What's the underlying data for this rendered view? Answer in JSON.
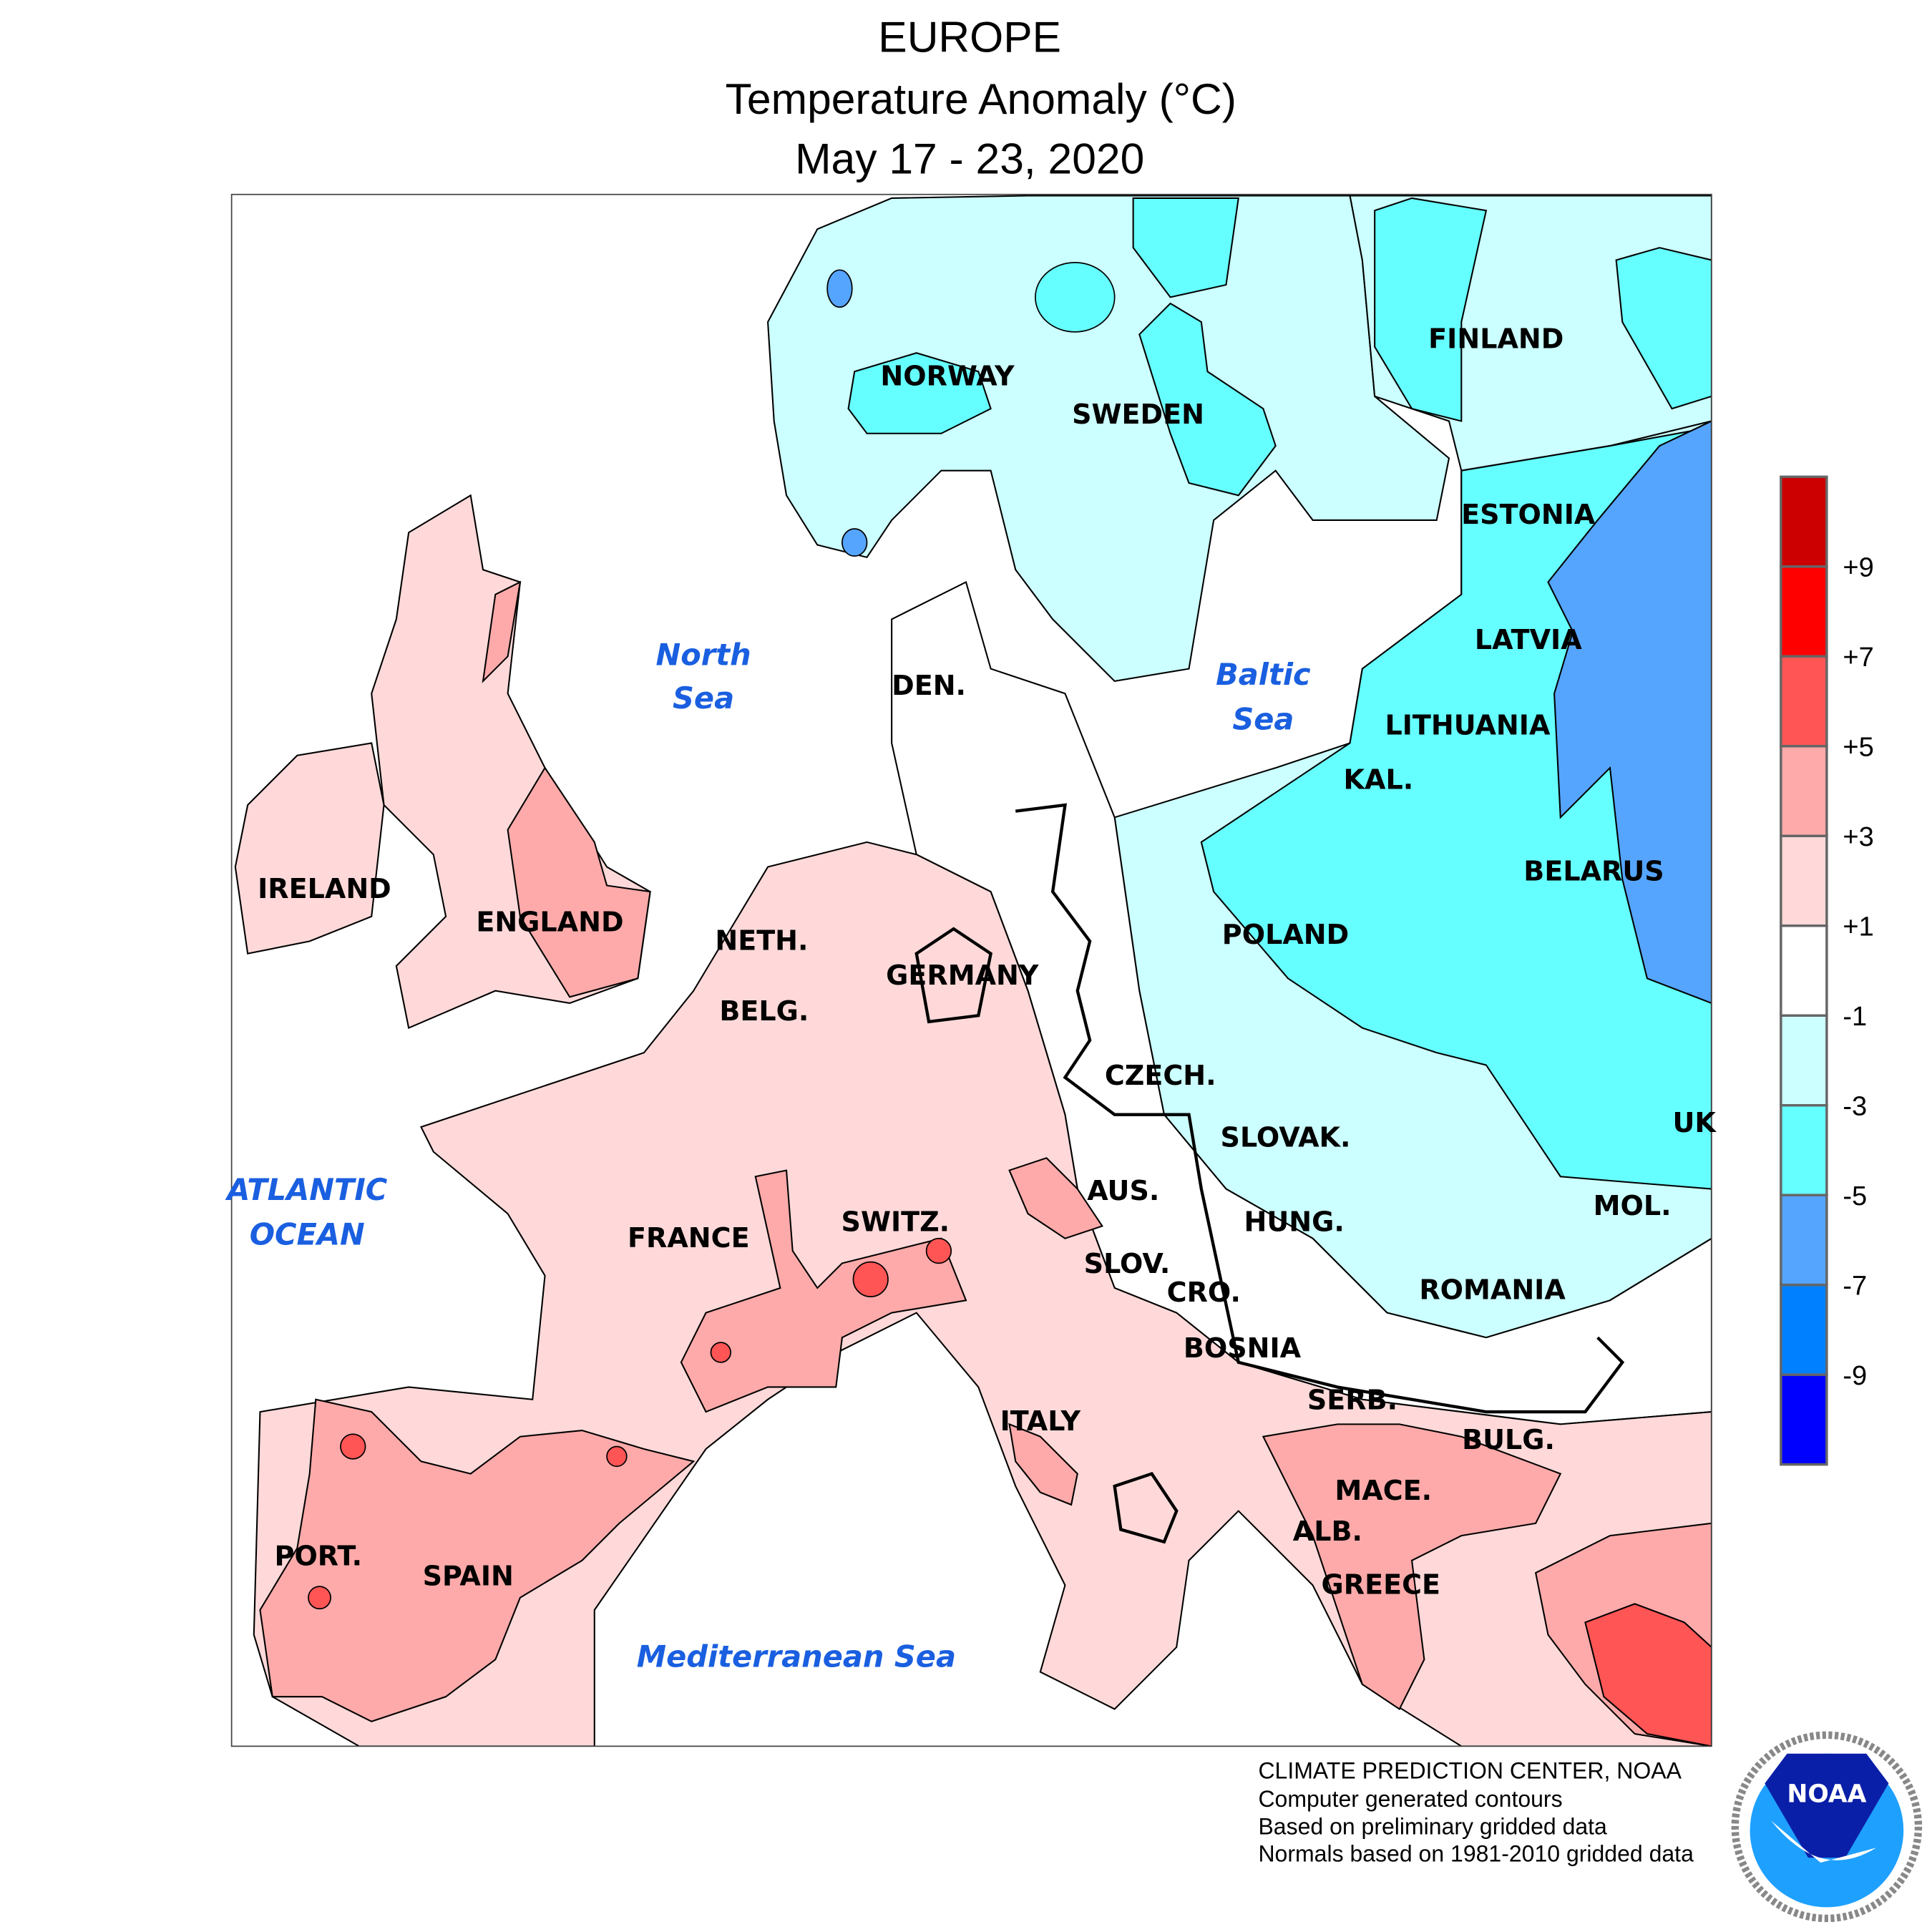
{
  "title": {
    "region": "EUROPE",
    "subtitle": "Temperature Anomaly (°C)",
    "period": "May 17 - 23, 2020"
  },
  "map": {
    "countries": [
      "NORWAY",
      "SWEDEN",
      "FINLAND",
      "ESTONIA",
      "LATVIA",
      "LITHUANIA",
      "KAL.",
      "BELARUS",
      "POLAND",
      "DEN.",
      "IRELAND",
      "ENGLAND",
      "NETH.",
      "BELG.",
      "GERMANY",
      "CZECH.",
      "SLOVAK.",
      "UK",
      "AUS.",
      "HUNG.",
      "MOL.",
      "SWITZ.",
      "FRANCE",
      "SLOV.",
      "CRO.",
      "ROMANIA",
      "BOSNIA",
      "SERB.",
      "ITALY",
      "BULG.",
      "MACE.",
      "ALB.",
      "GREECE",
      "PORT.",
      "SPAIN"
    ],
    "seas": {
      "north_sea_1": "North",
      "north_sea_2": "Sea",
      "baltic_1": "Baltic",
      "baltic_2": "Sea",
      "atlantic_1": "ATLANTIC",
      "atlantic_2": "OCEAN",
      "med": "Mediterranean Sea"
    }
  },
  "legend": {
    "unit": "°C",
    "colors": [
      "#cc0000",
      "#ff0000",
      "#ff5555",
      "#ffaaaa",
      "#ffd9d9",
      "#ffffff",
      "#ccffff",
      "#66ffff",
      "#55a5ff",
      "#0080ff",
      "#0000ff"
    ],
    "labels": [
      "+9",
      "+7",
      "+5",
      "+3",
      "+1",
      "-1",
      "-3",
      "-5",
      "-7",
      "-9"
    ]
  },
  "footer": {
    "line1": "CLIMATE PREDICTION CENTER, NOAA",
    "line2": "Computer generated contours",
    "line3": "Based on preliminary gridded data",
    "line4": "Normals based on 1981-2010 gridded data"
  },
  "logo": {
    "text": "NOAA",
    "ring_text": "NATIONAL OCEANIC AND ATMOSPHERIC ADMINISTRATION · U.S. DEPARTMENT OF COMMERCE"
  }
}
